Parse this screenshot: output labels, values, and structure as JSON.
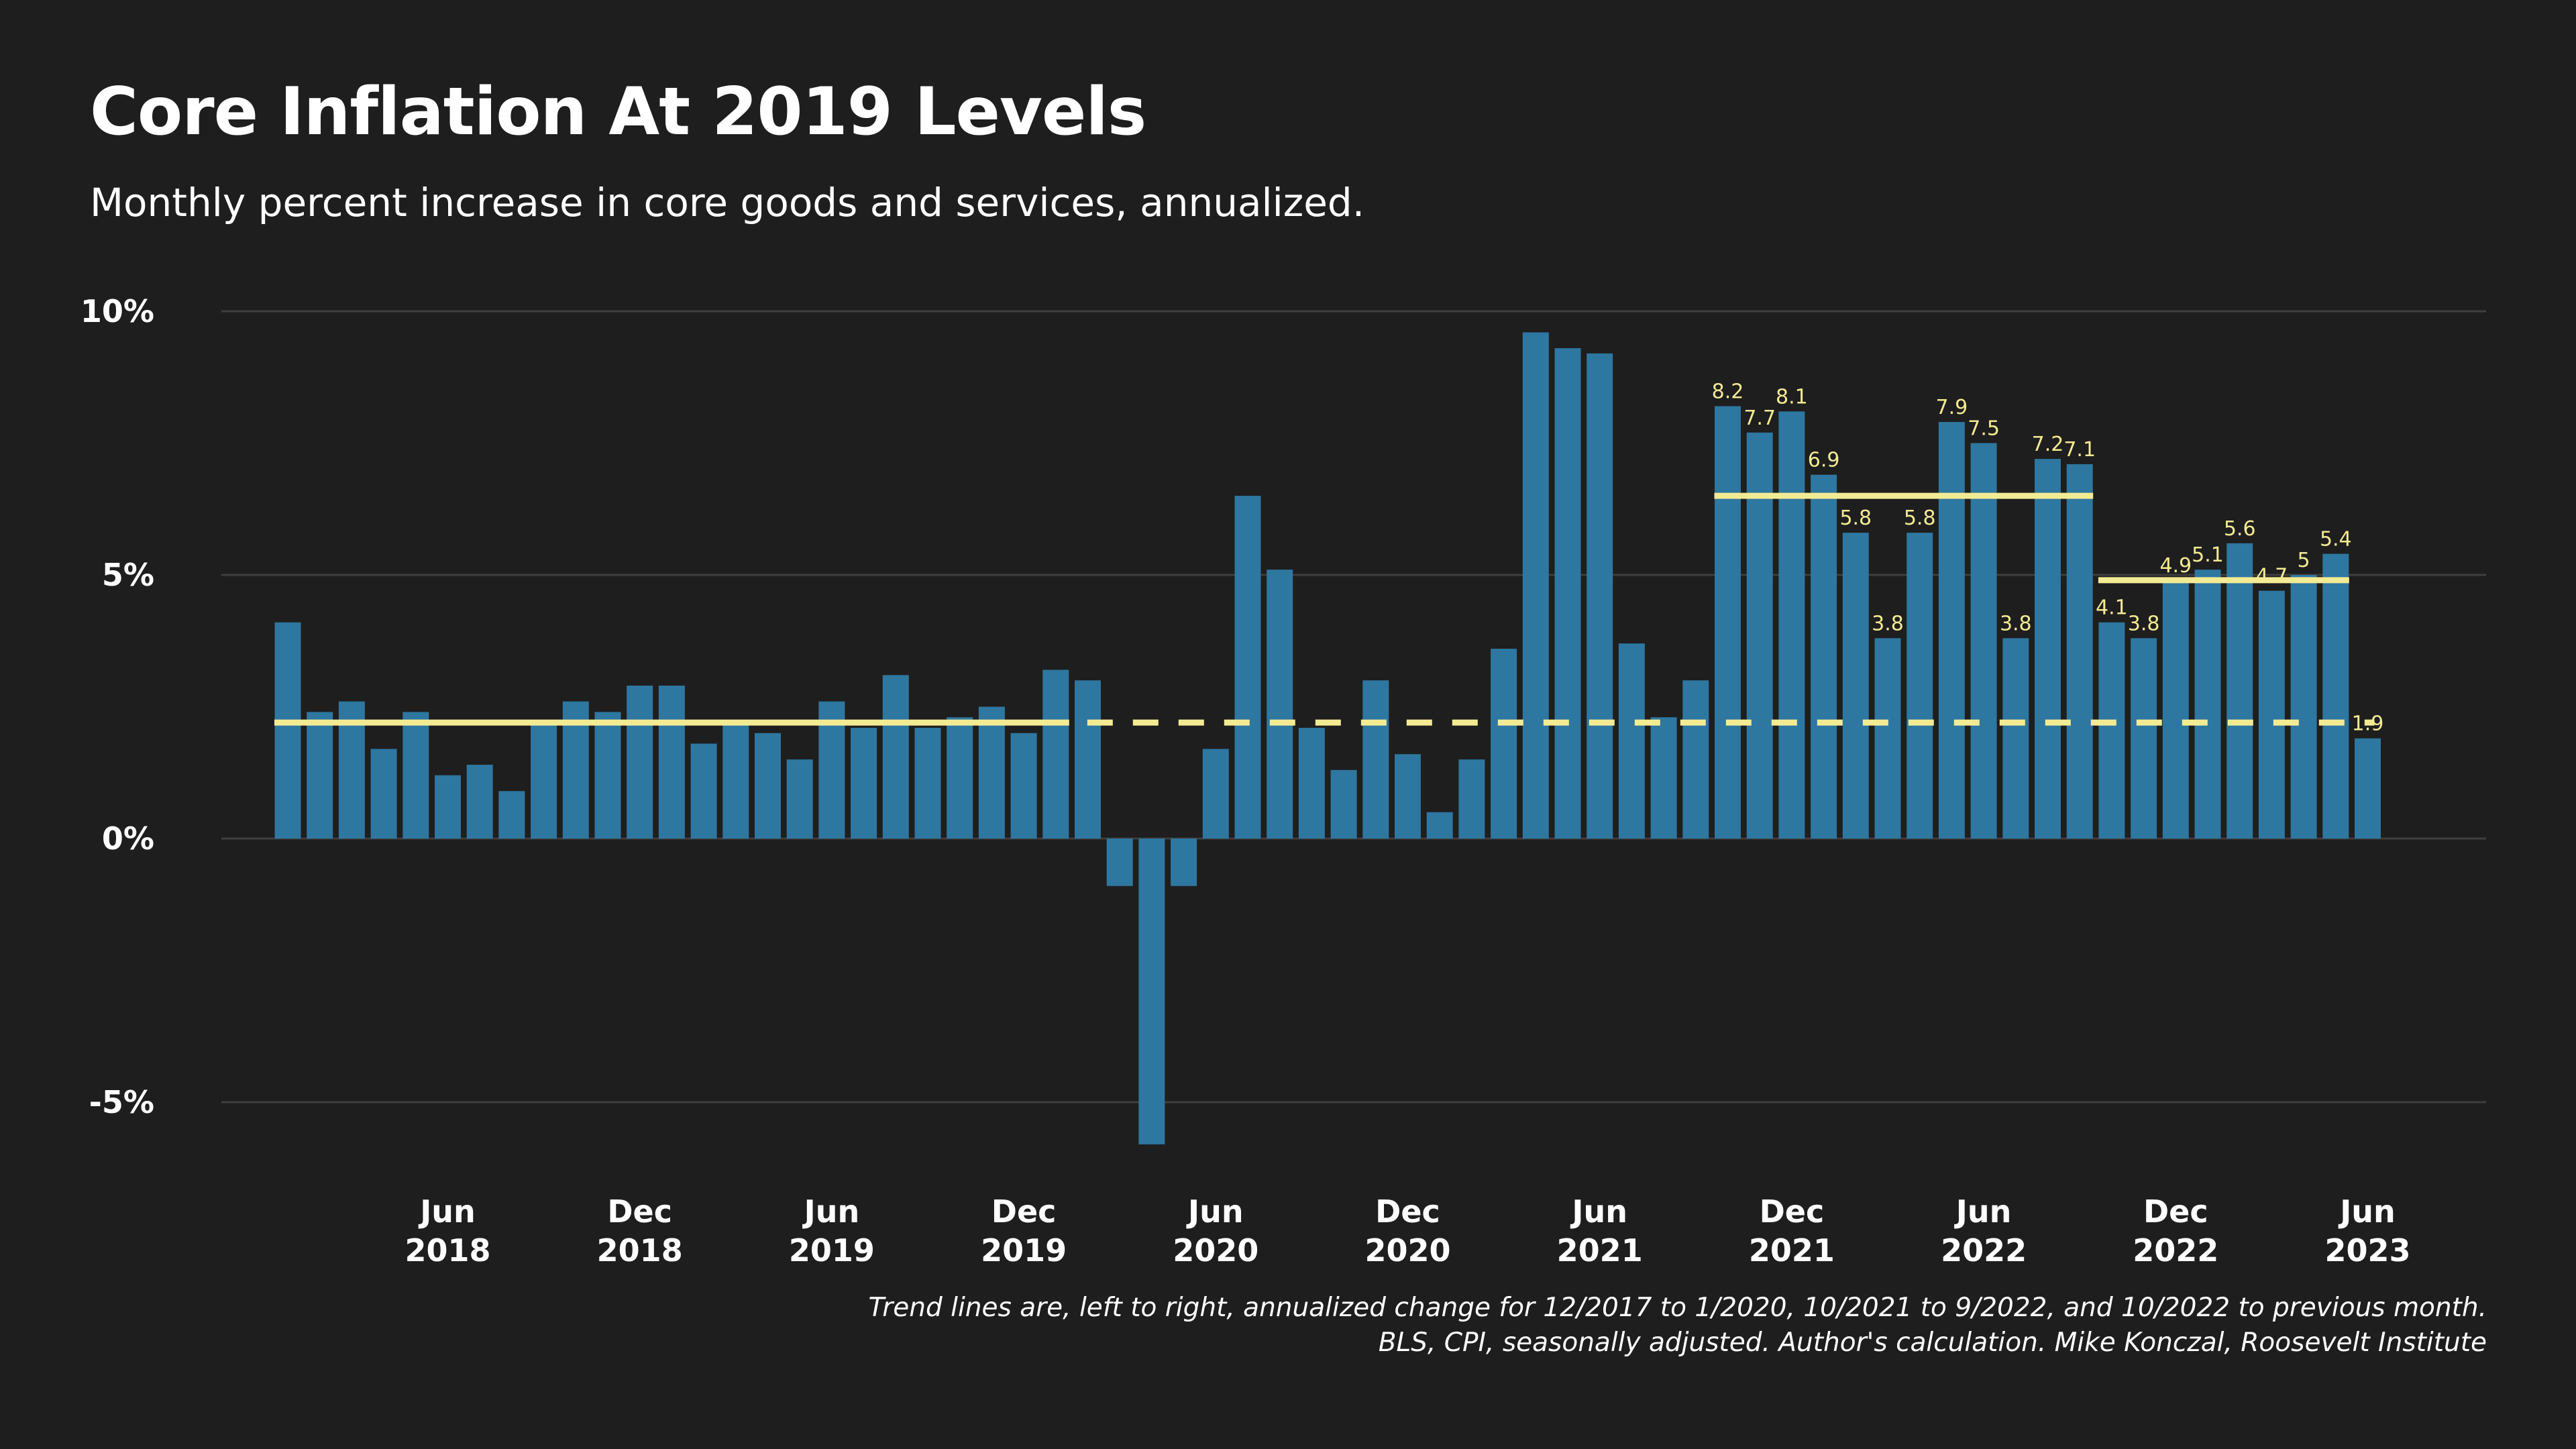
{
  "title": "Core Inflation At 2019 Levels",
  "subtitle": "Monthly percent increase in core goods and services, annualized.",
  "note": {
    "line1": "Trend lines are, left to right, annualized change for 12/2017 to 1/2020, 10/2021 to 9/2022, and 10/2022 to previous month.",
    "line2": "BLS, CPI, seasonally adjusted. Author's calculation. Mike Konczal, Roosevelt Institute"
  },
  "colors": {
    "background": "#1e1e1e",
    "bar": "#2e77a0",
    "trend": "#f3eb93",
    "grid": "#3e3e3e",
    "text": "#ffffff"
  },
  "chart_data": {
    "type": "bar",
    "title": "Core Inflation At 2019 Levels",
    "ylabel": "Monthly percent increase, annualized",
    "xlabel": "",
    "ylim": [
      -7.0,
      10.0
    ],
    "y_ticks": [
      {
        "value": 10,
        "label": "10%"
      },
      {
        "value": 5,
        "label": "5%"
      },
      {
        "value": 0,
        "label": "0%"
      },
      {
        "value": -5,
        "label": "-5%"
      }
    ],
    "grid": true,
    "categories": [
      "Jan 2018",
      "Feb 2018",
      "Mar 2018",
      "Apr 2018",
      "May 2018",
      "Jun 2018",
      "Jul 2018",
      "Aug 2018",
      "Sep 2018",
      "Oct 2018",
      "Nov 2018",
      "Dec 2018",
      "Jan 2019",
      "Feb 2019",
      "Mar 2019",
      "Apr 2019",
      "May 2019",
      "Jun 2019",
      "Jul 2019",
      "Aug 2019",
      "Sep 2019",
      "Oct 2019",
      "Nov 2019",
      "Dec 2019",
      "Jan 2020",
      "Feb 2020",
      "Mar 2020",
      "Apr 2020",
      "May 2020",
      "Jun 2020",
      "Jul 2020",
      "Aug 2020",
      "Sep 2020",
      "Oct 2020",
      "Nov 2020",
      "Dec 2020",
      "Jan 2021",
      "Feb 2021",
      "Mar 2021",
      "Apr 2021",
      "May 2021",
      "Jun 2021",
      "Jul 2021",
      "Aug 2021",
      "Sep 2021",
      "Oct 2021",
      "Nov 2021",
      "Dec 2021",
      "Jan 2022",
      "Feb 2022",
      "Mar 2022",
      "Apr 2022",
      "May 2022",
      "Jun 2022",
      "Jul 2022",
      "Aug 2022",
      "Sep 2022",
      "Oct 2022",
      "Nov 2022",
      "Dec 2022",
      "Jan 2023",
      "Feb 2023",
      "Mar 2023",
      "Apr 2023",
      "May 2023",
      "Jun 2023"
    ],
    "values": [
      4.1,
      2.4,
      2.6,
      1.7,
      2.4,
      1.2,
      1.4,
      0.9,
      2.2,
      2.6,
      2.4,
      2.9,
      2.9,
      1.8,
      2.2,
      2.0,
      1.5,
      2.6,
      2.1,
      3.1,
      2.1,
      2.3,
      2.5,
      2.0,
      3.2,
      3.0,
      -0.9,
      -5.8,
      -0.9,
      1.7,
      6.5,
      5.1,
      2.1,
      1.3,
      3.0,
      1.6,
      0.5,
      1.5,
      3.6,
      9.6,
      9.3,
      9.2,
      3.7,
      2.3,
      3.0,
      8.2,
      7.7,
      8.1,
      6.9,
      5.8,
      3.8,
      5.8,
      7.9,
      7.5,
      3.8,
      7.2,
      7.1,
      4.1,
      3.8,
      4.9,
      5.1,
      5.6,
      4.7,
      5.0,
      5.4,
      1.9
    ],
    "data_labels": [
      {
        "index": 45,
        "text": "8.2"
      },
      {
        "index": 46,
        "text": "7.7"
      },
      {
        "index": 47,
        "text": "8.1"
      },
      {
        "index": 48,
        "text": "6.9"
      },
      {
        "index": 49,
        "text": "5.8"
      },
      {
        "index": 50,
        "text": "3.8"
      },
      {
        "index": 51,
        "text": "5.8"
      },
      {
        "index": 52,
        "text": "7.9"
      },
      {
        "index": 53,
        "text": "7.5"
      },
      {
        "index": 54,
        "text": "3.8"
      },
      {
        "index": 55,
        "text": "7.2"
      },
      {
        "index": 56,
        "text": "7.1"
      },
      {
        "index": 57,
        "text": "4.1"
      },
      {
        "index": 58,
        "text": "3.8"
      },
      {
        "index": 59,
        "text": "4.9"
      },
      {
        "index": 60,
        "text": "5.1"
      },
      {
        "index": 61,
        "text": "5.6"
      },
      {
        "index": 62,
        "text": "4.7"
      },
      {
        "index": 63,
        "text": "5"
      },
      {
        "index": 64,
        "text": "5.4"
      },
      {
        "index": 65,
        "text": "1.9"
      }
    ],
    "x_ticks": [
      {
        "index": 5,
        "month": "Jun",
        "year": "2018"
      },
      {
        "index": 11,
        "month": "Dec",
        "year": "2018"
      },
      {
        "index": 17,
        "month": "Jun",
        "year": "2019"
      },
      {
        "index": 23,
        "month": "Dec",
        "year": "2019"
      },
      {
        "index": 29,
        "month": "Jun",
        "year": "2020"
      },
      {
        "index": 35,
        "month": "Dec",
        "year": "2020"
      },
      {
        "index": 41,
        "month": "Jun",
        "year": "2021"
      },
      {
        "index": 47,
        "month": "Dec",
        "year": "2021"
      },
      {
        "index": 53,
        "month": "Jun",
        "year": "2022"
      },
      {
        "index": 59,
        "month": "Dec",
        "year": "2022"
      },
      {
        "index": 65,
        "month": "Jun",
        "year": "2023"
      }
    ],
    "trend_lines": [
      {
        "name": "12/2017 to 1/2020",
        "from_index": 0,
        "to_index": 24,
        "value": 2.2,
        "extended_dashed_to_index": 65
      },
      {
        "name": "10/2021 to 9/2022",
        "from_index": 45,
        "to_index": 56,
        "value": 6.5
      },
      {
        "name": "10/2022 to previous month",
        "from_index": 57,
        "to_index": 64,
        "value": 4.9
      }
    ]
  }
}
